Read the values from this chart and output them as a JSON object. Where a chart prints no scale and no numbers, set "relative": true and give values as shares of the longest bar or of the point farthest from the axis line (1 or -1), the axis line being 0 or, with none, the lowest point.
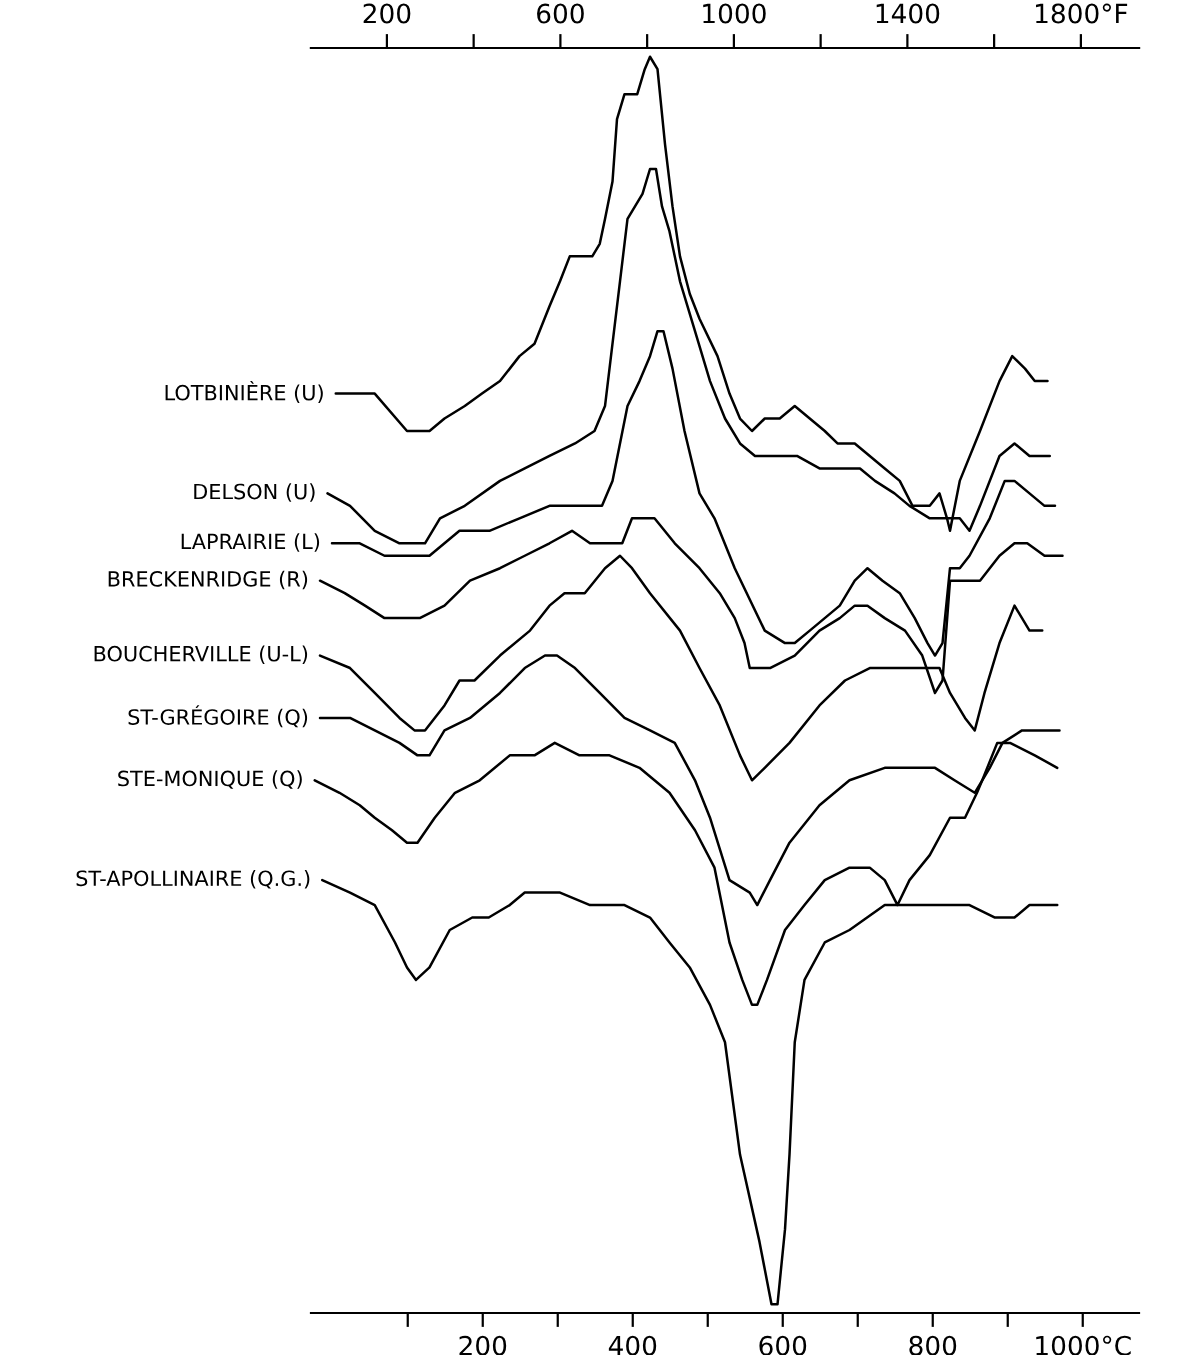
{
  "chart_data": {
    "type": "line",
    "relative": true,
    "xlim": [
      -29,
      1075
    ],
    "xticks": [
      {
        "value": 100,
        "label": null
      },
      200,
      {
        "value": 300,
        "label": null
      },
      400,
      {
        "value": 500,
        "label": null
      },
      600,
      {
        "value": 700,
        "label": null
      },
      800,
      {
        "value": 900,
        "label": null
      },
      {
        "value": 1000,
        "label": "1000°C"
      }
    ],
    "x2lim": [
      25,
      1934
    ],
    "x2ticks": [
      200,
      {
        "value": 400,
        "label": null
      },
      600,
      {
        "value": 800,
        "label": null
      },
      1000,
      {
        "value": 1200,
        "label": null
      },
      1400,
      {
        "value": 1600,
        "label": null
      },
      {
        "value": 1800,
        "label": "1800°F"
      }
    ],
    "series": [
      {
        "name": "LOTBINIÈRE (U)",
        "color": "#000000",
        "x": [
          4,
          29,
          56,
          99,
          113,
          129,
          149,
          176,
          199,
          223,
          249,
          269,
          289,
          303,
          316,
          329,
          346,
          356,
          363,
          373,
          379,
          389,
          406,
          416,
          423,
          433,
          443,
          453,
          463,
          476,
          489,
          513,
          529,
          543,
          559,
          576,
          596,
          616,
          636,
          656,
          673,
          696,
          716,
          736,
          756,
          773,
          783,
          796,
          809,
          819,
          823,
          836,
          863,
          889,
          906,
          923,
          936,
          953
        ],
        "values": [
          0.73,
          0.73,
          0.73,
          0.7,
          0.7,
          0.7,
          0.71,
          0.72,
          0.73,
          0.74,
          0.76,
          0.77,
          0.8,
          0.82,
          0.84,
          0.84,
          0.84,
          0.85,
          0.87,
          0.9,
          0.95,
          0.97,
          0.97,
          0.99,
          1.0,
          0.99,
          0.93,
          0.88,
          0.84,
          0.81,
          0.79,
          0.76,
          0.73,
          0.71,
          0.7,
          0.71,
          0.71,
          0.72,
          0.71,
          0.7,
          0.69,
          0.69,
          0.68,
          0.67,
          0.66,
          0.64,
          0.64,
          0.64,
          0.65,
          0.63,
          0.62,
          0.66,
          0.7,
          0.74,
          0.76,
          0.75,
          0.74,
          0.74
        ]
      },
      {
        "name": "DELSON (U)",
        "color": "#000000",
        "x": [
          -7,
          23,
          56,
          89,
          104,
          123,
          143,
          176,
          223,
          256,
          289,
          323,
          349,
          363,
          373,
          383,
          393,
          403,
          413,
          423,
          431,
          439,
          449,
          463,
          483,
          503,
          523,
          543,
          563,
          589,
          619,
          649,
          676,
          703,
          723,
          749,
          769,
          796,
          816,
          836,
          849,
          863,
          889,
          909,
          929,
          956
        ],
        "values": [
          0.65,
          0.64,
          0.62,
          0.61,
          0.61,
          0.61,
          0.63,
          0.64,
          0.66,
          0.67,
          0.68,
          0.69,
          0.7,
          0.72,
          0.77,
          0.82,
          0.87,
          0.88,
          0.89,
          0.91,
          0.91,
          0.88,
          0.86,
          0.82,
          0.78,
          0.74,
          0.71,
          0.69,
          0.68,
          0.68,
          0.68,
          0.67,
          0.67,
          0.67,
          0.66,
          0.65,
          0.64,
          0.63,
          0.63,
          0.63,
          0.62,
          0.64,
          0.68,
          0.69,
          0.68,
          0.68
        ]
      },
      {
        "name": "LAPRAIRIE (L)",
        "color": "#000000",
        "x": [
          -1,
          36,
          69,
          103,
          129,
          169,
          209,
          249,
          289,
          329,
          359,
          373,
          383,
          393,
          409,
          423,
          433,
          441,
          453,
          469,
          489,
          509,
          536,
          576,
          603,
          616,
          636,
          656,
          676,
          696,
          713,
          733,
          756,
          776,
          793,
          803,
          813,
          823,
          836,
          849,
          876,
          896,
          909,
          929,
          949,
          963
        ],
        "values": [
          0.61,
          0.61,
          0.6,
          0.6,
          0.6,
          0.62,
          0.62,
          0.63,
          0.64,
          0.64,
          0.64,
          0.66,
          0.69,
          0.72,
          0.74,
          0.76,
          0.78,
          0.78,
          0.75,
          0.7,
          0.65,
          0.63,
          0.59,
          0.54,
          0.53,
          0.53,
          0.54,
          0.55,
          0.56,
          0.58,
          0.59,
          0.58,
          0.57,
          0.55,
          0.53,
          0.52,
          0.53,
          0.59,
          0.59,
          0.6,
          0.63,
          0.66,
          0.66,
          0.65,
          0.64,
          0.64
        ]
      },
      {
        "name": "BRECKENRIDGE (R)",
        "color": "#000000",
        "x": [
          -17,
          16,
          43,
          69,
          93,
          116,
          149,
          183,
          223,
          256,
          289,
          319,
          343,
          363,
          386,
          399,
          411,
          429,
          456,
          489,
          516,
          536,
          549,
          556,
          583,
          616,
          649,
          676,
          696,
          713,
          736,
          763,
          786,
          803,
          813,
          823,
          836,
          863,
          889,
          909,
          926,
          949,
          973
        ],
        "values": [
          0.58,
          0.57,
          0.56,
          0.55,
          0.55,
          0.55,
          0.56,
          0.58,
          0.59,
          0.6,
          0.61,
          0.62,
          0.61,
          0.61,
          0.61,
          0.63,
          0.63,
          0.63,
          0.61,
          0.59,
          0.57,
          0.55,
          0.53,
          0.51,
          0.51,
          0.52,
          0.54,
          0.55,
          0.56,
          0.56,
          0.55,
          0.54,
          0.52,
          0.49,
          0.5,
          0.58,
          0.58,
          0.58,
          0.6,
          0.61,
          0.61,
          0.6,
          0.6
        ]
      },
      {
        "name": "BOUCHERVILLE (U-L)",
        "color": "#000000",
        "x": [
          -17,
          23,
          56,
          89,
          109,
          123,
          149,
          169,
          189,
          223,
          263,
          289,
          309,
          336,
          363,
          383,
          399,
          423,
          463,
          489,
          516,
          543,
          559,
          576,
          609,
          649,
          683,
          716,
          756,
          783,
          809,
          823,
          843,
          856,
          869,
          889,
          909,
          929,
          946
        ],
        "values": [
          0.52,
          0.51,
          0.49,
          0.47,
          0.46,
          0.46,
          0.48,
          0.5,
          0.5,
          0.52,
          0.54,
          0.56,
          0.57,
          0.57,
          0.59,
          0.6,
          0.59,
          0.57,
          0.54,
          0.51,
          0.48,
          0.44,
          0.42,
          0.43,
          0.45,
          0.48,
          0.5,
          0.51,
          0.51,
          0.51,
          0.51,
          0.49,
          0.47,
          0.46,
          0.49,
          0.53,
          0.56,
          0.54,
          0.54
        ]
      },
      {
        "name": "ST-GRÉGOIRE (Q)",
        "color": "#000000",
        "x": [
          -17,
          23,
          56,
          89,
          113,
          129,
          149,
          183,
          223,
          256,
          283,
          299,
          323,
          356,
          389,
          423,
          456,
          483,
          503,
          529,
          556,
          566,
          583,
          609,
          649,
          689,
          736,
          776,
          803,
          829,
          856,
          876,
          893,
          919,
          943,
          969
        ],
        "values": [
          0.47,
          0.47,
          0.46,
          0.45,
          0.44,
          0.44,
          0.46,
          0.47,
          0.49,
          0.51,
          0.52,
          0.52,
          0.51,
          0.49,
          0.47,
          0.46,
          0.45,
          0.42,
          0.39,
          0.34,
          0.33,
          0.32,
          0.34,
          0.37,
          0.4,
          0.42,
          0.43,
          0.43,
          0.43,
          0.42,
          0.41,
          0.43,
          0.45,
          0.46,
          0.46,
          0.46
        ]
      },
      {
        "name": "STE-MONIQUE (Q)",
        "color": "#000000",
        "x": [
          -24,
          9,
          36,
          56,
          79,
          99,
          113,
          136,
          163,
          196,
          236,
          269,
          296,
          329,
          369,
          409,
          449,
          483,
          509,
          529,
          546,
          559,
          566,
          579,
          603,
          629,
          656,
          689,
          716,
          736,
          753,
          769,
          796,
          823,
          843,
          859,
          866,
          886,
          903,
          936,
          966
        ],
        "values": [
          0.42,
          0.41,
          0.4,
          0.39,
          0.38,
          0.37,
          0.37,
          0.39,
          0.41,
          0.42,
          0.44,
          0.44,
          0.45,
          0.44,
          0.44,
          0.43,
          0.41,
          0.38,
          0.35,
          0.29,
          0.26,
          0.24,
          0.24,
          0.26,
          0.3,
          0.32,
          0.34,
          0.35,
          0.35,
          0.34,
          0.32,
          0.34,
          0.36,
          0.39,
          0.39,
          0.41,
          0.42,
          0.45,
          0.45,
          0.44,
          0.43
        ]
      },
      {
        "name": "ST-APOLLINAIRE (Q.G.)",
        "color": "#000000",
        "x": [
          -14,
          23,
          56,
          83,
          99,
          111,
          129,
          156,
          186,
          208,
          236,
          256,
          303,
          343,
          389,
          423,
          449,
          476,
          503,
          523,
          543,
          569,
          585,
          593,
          603,
          609,
          616,
          629,
          656,
          689,
          736,
          796,
          829,
          849,
          883,
          909,
          929,
          966
        ],
        "values": [
          0.34,
          0.33,
          0.32,
          0.29,
          0.27,
          0.26,
          0.27,
          0.3,
          0.31,
          0.31,
          0.32,
          0.33,
          0.33,
          0.32,
          0.32,
          0.31,
          0.29,
          0.27,
          0.24,
          0.21,
          0.12,
          0.05,
          0.0,
          0.0,
          0.06,
          0.12,
          0.21,
          0.26,
          0.29,
          0.3,
          0.32,
          0.32,
          0.32,
          0.32,
          0.31,
          0.31,
          0.32,
          0.32
        ]
      }
    ]
  }
}
